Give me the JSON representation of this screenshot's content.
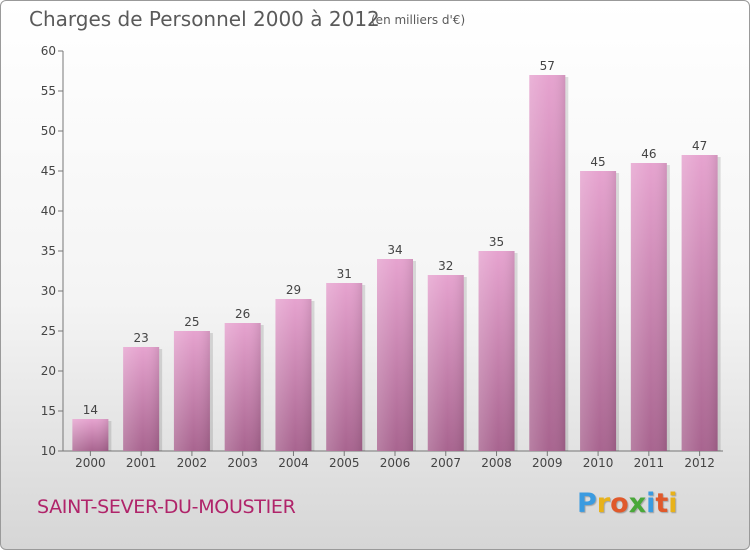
{
  "header": {
    "title": "Charges de Personnel 2000 à 2012",
    "subtitle": "(en milliers d'€)"
  },
  "footer": {
    "place": "SAINT-SEVER-DU-MOUSTIER",
    "logo": [
      "P",
      "r",
      "o",
      "x",
      "i",
      "t",
      "i"
    ],
    "logo_colors": [
      "#3b9be0",
      "#e8b21a",
      "#e0592b",
      "#4aa83a",
      "#3b9be0",
      "#e0592b",
      "#e8b21a"
    ]
  },
  "chart_data": {
    "type": "bar",
    "categories": [
      "2000",
      "2001",
      "2002",
      "2003",
      "2004",
      "2005",
      "2006",
      "2007",
      "2008",
      "2009",
      "2010",
      "2011",
      "2012"
    ],
    "values": [
      14,
      23,
      25,
      26,
      29,
      31,
      34,
      32,
      35,
      57,
      45,
      46,
      47
    ],
    "ylim": [
      10,
      60
    ],
    "yticks": [
      10,
      15,
      20,
      25,
      30,
      35,
      40,
      45,
      50,
      55,
      60
    ],
    "grid": false,
    "bar_color": "#d98fbe"
  }
}
